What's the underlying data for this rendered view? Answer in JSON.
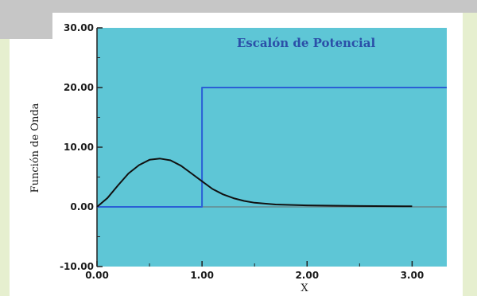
{
  "chart_data": {
    "type": "line",
    "title": "Escalón de Potencial",
    "xlabel": "X",
    "ylabel": "Función de Onda",
    "xlim": [
      0,
      3.33
    ],
    "ylim": [
      -10,
      30
    ],
    "x_ticks": [
      "0.00",
      "1.00",
      "2.00",
      "3.00"
    ],
    "y_ticks": [
      "-10.00",
      "0.00",
      "10.00",
      "20.00",
      "30.00"
    ],
    "grid": false,
    "legend": "none",
    "colors": {
      "plot_background": "#5ec6d6",
      "potential_line": "#2a5fd6",
      "wave_line": "#111111",
      "title": "#2b4fa8"
    },
    "series": [
      {
        "x": [
          0,
          1,
          1,
          3.33
        ],
        "y": [
          0,
          0,
          20,
          20
        ]
      },
      {
        "x": [
          0,
          0.1,
          0.2,
          0.3,
          0.4,
          0.5,
          0.6,
          0.7,
          0.8,
          0.9,
          1.0,
          1.1,
          1.2,
          1.3,
          1.4,
          1.5,
          1.7,
          2.0,
          2.5,
          3.0
        ],
        "y": [
          0,
          1.5,
          3.6,
          5.6,
          7.0,
          7.9,
          8.1,
          7.8,
          6.9,
          5.6,
          4.3,
          3.0,
          2.1,
          1.45,
          1.0,
          0.7,
          0.4,
          0.25,
          0.15,
          0.1
        ]
      }
    ]
  }
}
